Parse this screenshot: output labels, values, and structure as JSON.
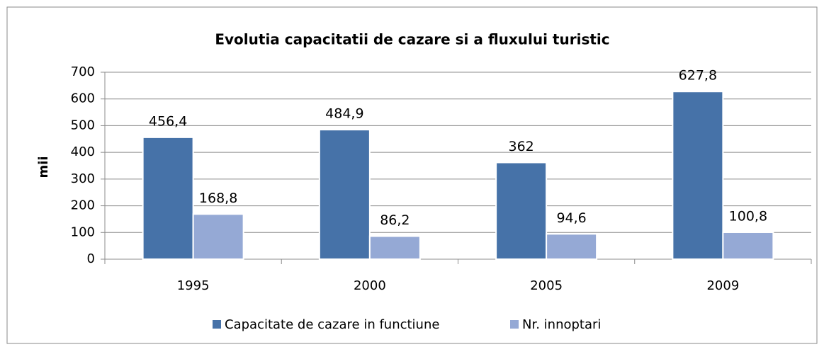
{
  "chart_data": {
    "type": "bar",
    "title": "Evolutia capacitatii de cazare si a fluxului turistic",
    "y_label": "mii",
    "categories": [
      "1995",
      "2000",
      "2005",
      "2009"
    ],
    "series": [
      {
        "name": "Capacitate de cazare in functiune",
        "color": "#4672a8",
        "values": [
          456.4,
          484.9,
          362,
          627.8
        ],
        "value_labels": [
          "456,4",
          "484,9",
          "362",
          "627,8"
        ]
      },
      {
        "name": "Nr. innoptari",
        "color": "#95a9d5",
        "values": [
          168.8,
          86.2,
          94.6,
          100.8
        ],
        "value_labels": [
          "168,8",
          "86,2",
          "94,6",
          "100,8"
        ]
      }
    ],
    "ylim": [
      0,
      700
    ],
    "yticks": [
      0,
      100,
      200,
      300,
      400,
      500,
      600,
      700
    ],
    "grid": true,
    "legend": "bottom"
  }
}
